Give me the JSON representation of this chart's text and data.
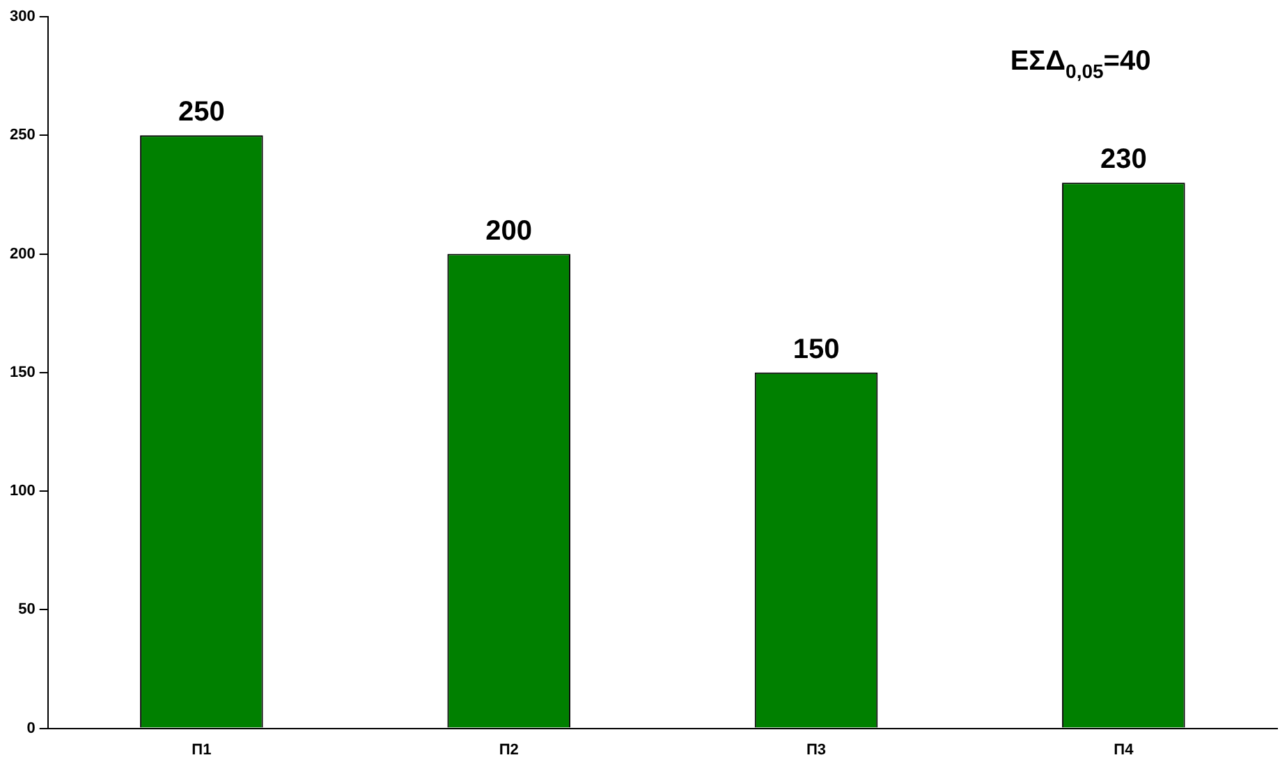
{
  "chart_data": {
    "type": "bar",
    "categories": [
      "Π1",
      "Π2",
      "Π3",
      "Π4"
    ],
    "values": [
      250,
      200,
      150,
      230
    ],
    "color": "#008000",
    "ylim": [
      0,
      300
    ],
    "yticks": [
      0,
      50,
      100,
      150,
      200,
      250,
      300
    ],
    "grid": false,
    "legend": false,
    "data_labels": true,
    "annotations": [
      "ΕΣΔ$_{0,05}$=40"
    ]
  }
}
